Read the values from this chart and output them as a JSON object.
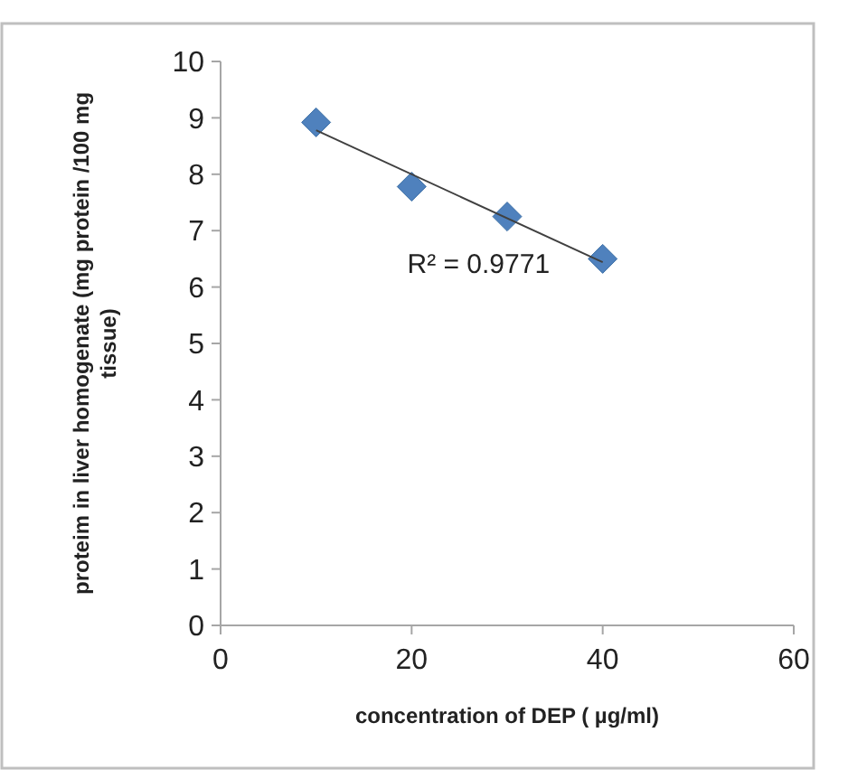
{
  "chart_data": {
    "type": "scatter",
    "xlabel": "concentration of DEP ( µg/ml)",
    "ylabel": "proteim in liver homogenate (mg protein /100 mg tissue)",
    "x": [
      10,
      20,
      30,
      40
    ],
    "series": [
      {
        "color": "#4f81bd",
        "values": [
          8.92,
          7.78,
          7.25,
          6.5
        ],
        "marker": "diamond"
      },
      {
        "type": "line",
        "color": "#404040",
        "x": [
          10,
          40
        ],
        "values": [
          8.78,
          6.44
        ],
        "marker": "none",
        "line_style": "solid"
      }
    ],
    "annotations": [
      "R² = 0.9771"
    ],
    "xlim": [
      0,
      60
    ],
    "xticks": [
      0,
      20,
      40,
      60
    ],
    "ylim": [
      0,
      10
    ],
    "yticks": [
      0,
      1,
      2,
      3,
      4,
      5,
      6,
      7,
      8,
      9,
      10
    ],
    "grid": false
  }
}
